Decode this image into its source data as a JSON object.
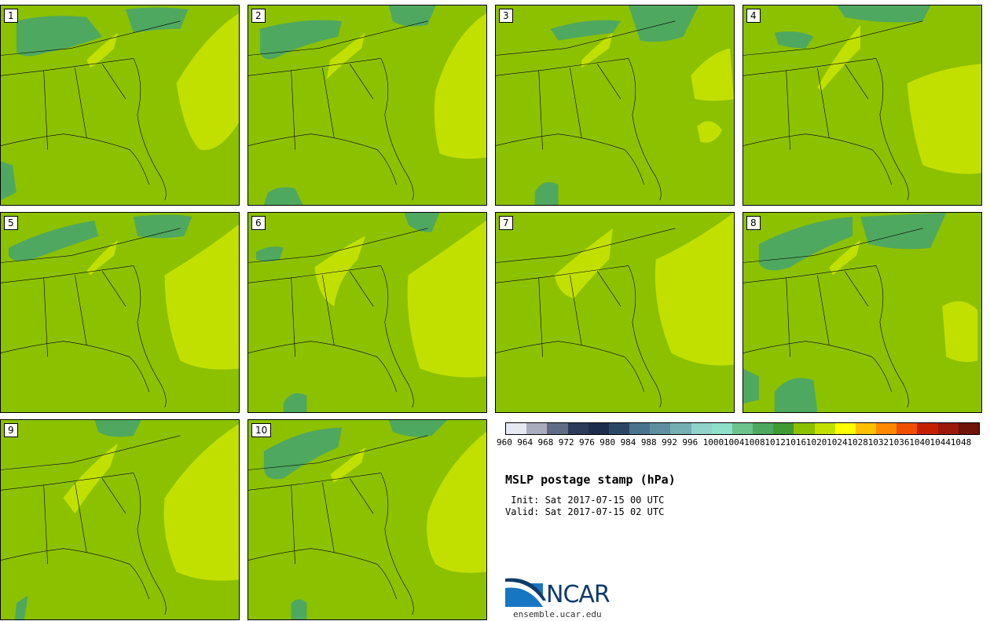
{
  "members": [
    "1",
    "2",
    "3",
    "4",
    "5",
    "6",
    "7",
    "8",
    "9",
    "10"
  ],
  "colorbar": {
    "colors": [
      "#e6e9f0",
      "#a9acbd",
      "#5f6d86",
      "#2c3b5a",
      "#1c2c4c",
      "#2a4866",
      "#4a738e",
      "#5d8fa0",
      "#74afb3",
      "#8fd3c9",
      "#8ee0c8",
      "#6dc48c",
      "#4fa860",
      "#3f9a32",
      "#8cc100",
      "#c2e000",
      "#ffff00",
      "#ffc000",
      "#ff8a00",
      "#f04e00",
      "#c42000",
      "#9c1808",
      "#6e1408"
    ],
    "ticks": [
      "960",
      "964",
      "968",
      "972",
      "976",
      "980",
      "984",
      "988",
      "992",
      "996",
      "1000",
      "1004",
      "1008",
      "1012",
      "1016",
      "1020",
      "1024",
      "1028",
      "1032",
      "1036",
      "1040",
      "1044",
      "1048"
    ]
  },
  "title": "MSLP postage stamp (hPa)",
  "init": " Init: Sat 2017-07-15 00 UTC",
  "valid": "Valid: Sat 2017-07-15 02 UTC",
  "logo_text": "NCAR",
  "url": "ensemble.ucar.edu"
}
